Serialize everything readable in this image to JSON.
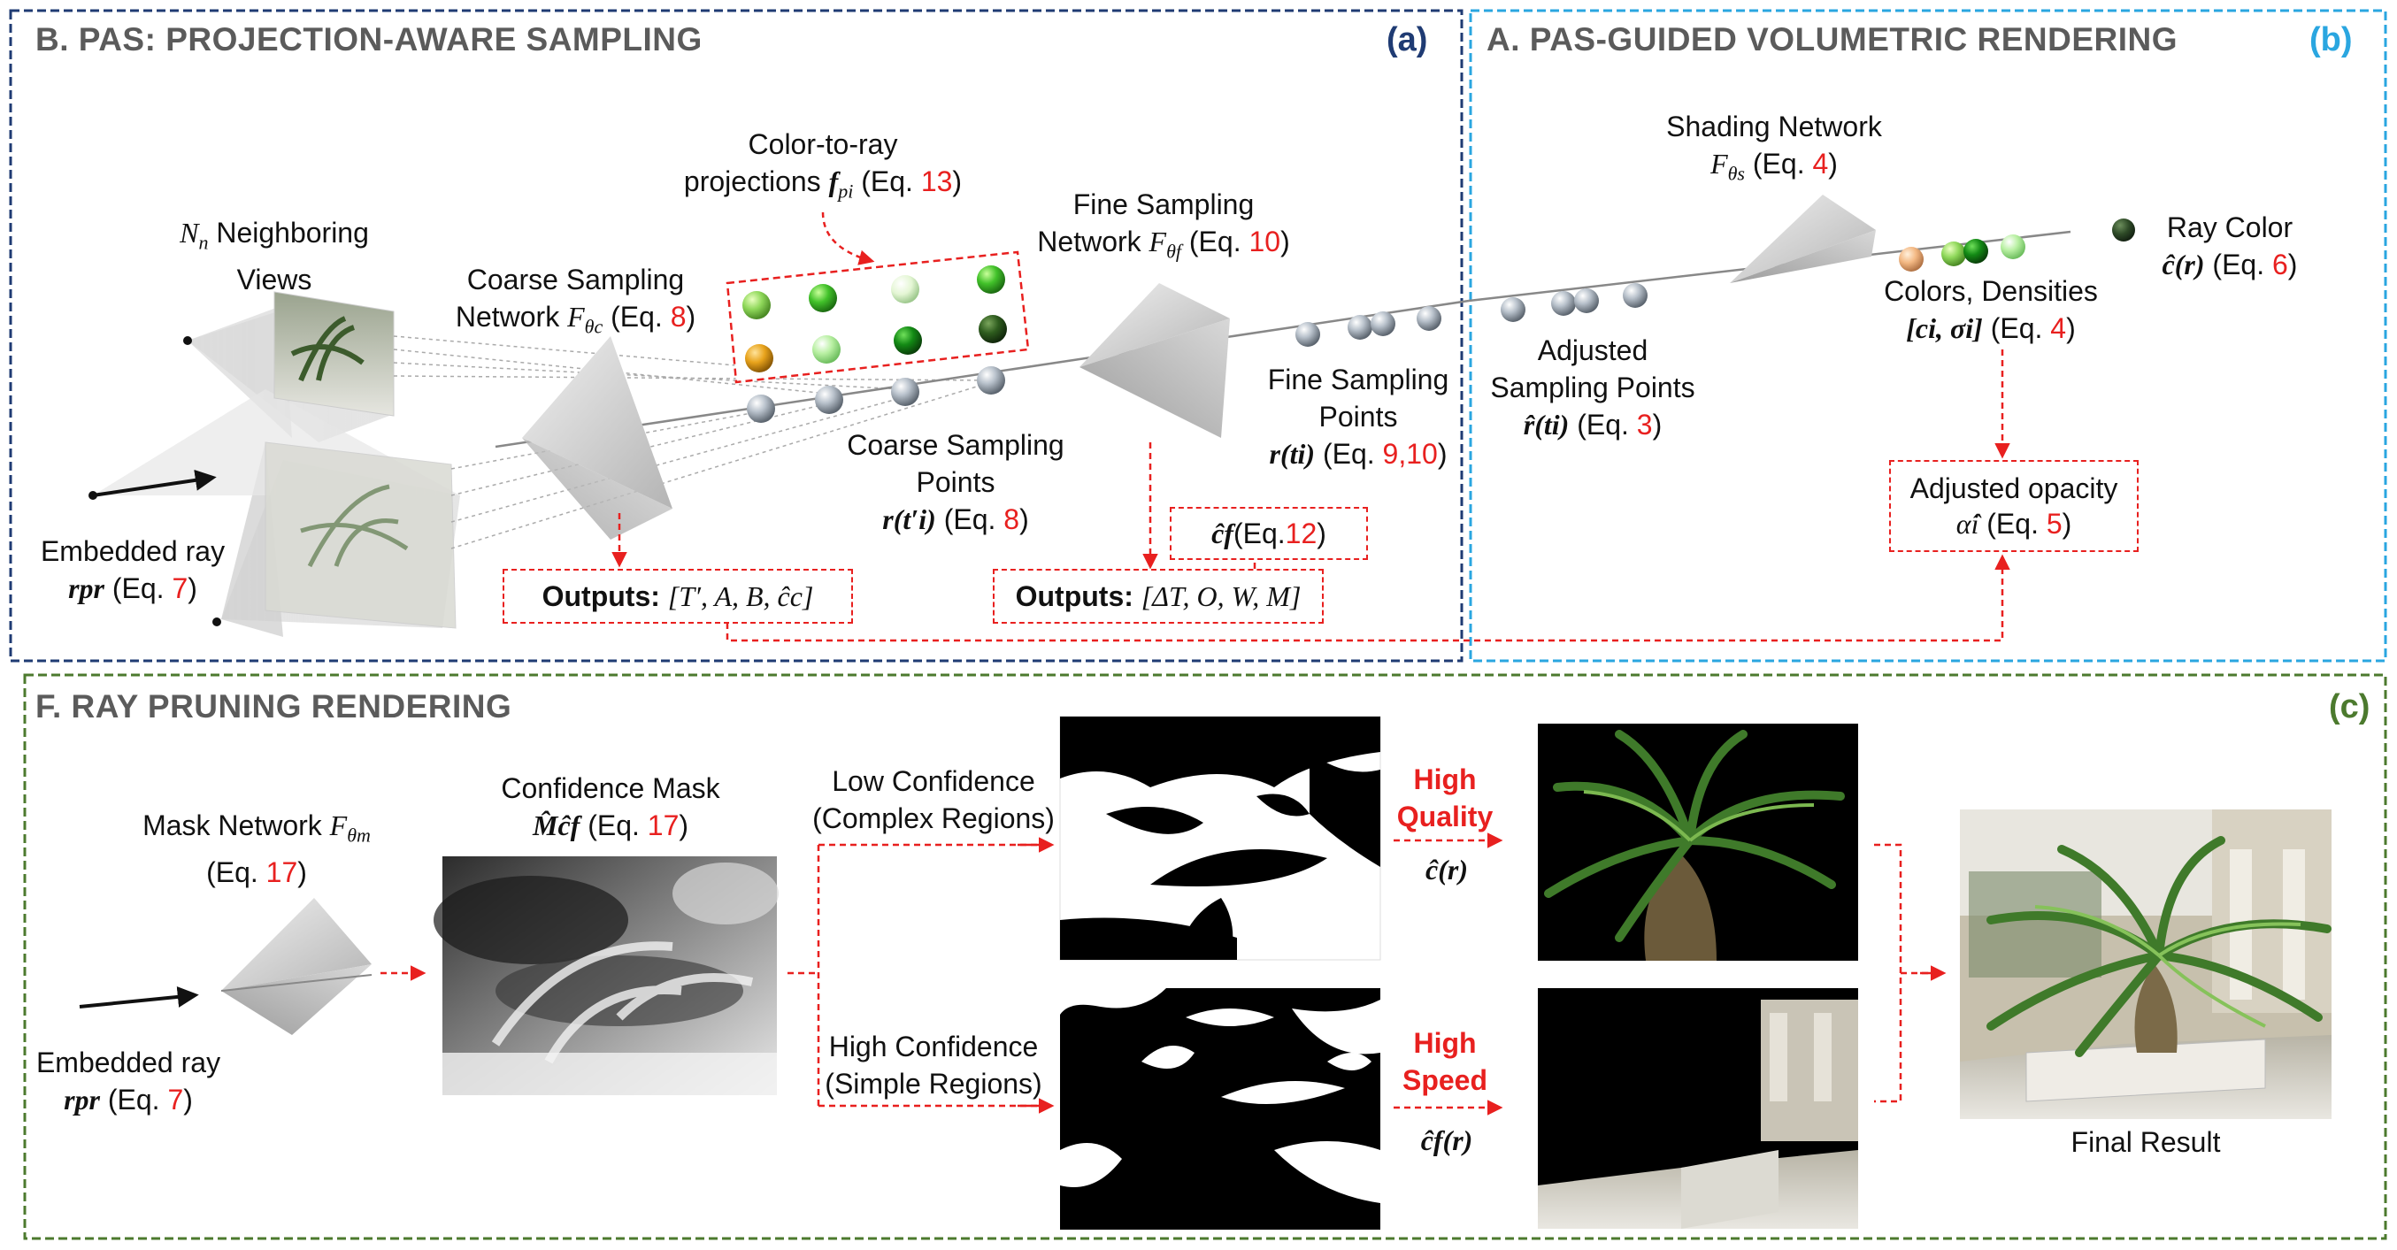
{
  "panels": {
    "a": {
      "title": "B. PAS: PROJECTION-AWARE SAMPLING",
      "tag": "(a)",
      "color": "#1f3b73"
    },
    "b": {
      "title": "A. PAS-GUIDED VOLUMETRIC RENDERING",
      "tag": "(b)",
      "color": "#2aa6e0"
    },
    "c": {
      "title": "F. RAY PRUNING RENDERING",
      "tag": "(c)",
      "color": "#4c7a2e"
    }
  },
  "a": {
    "neighboring_views": {
      "prefix": "N",
      "sub": "n",
      "text": " Neighboring",
      "line2": "Views"
    },
    "coarse_network": {
      "line1": "Coarse Sampling",
      "line2_pre": "Network ",
      "F": "F",
      "sub": "θc",
      "eq": " (Eq. ",
      "eq_num": "8",
      "end": ")"
    },
    "color_to_ray": {
      "line1": "Color-to-ray",
      "line2_pre": "projections ",
      "f": "f",
      "sub": "pi",
      "eq": " (Eq. ",
      "eq_num": "13",
      "end": ")"
    },
    "fine_network": {
      "line1": "Fine Sampling",
      "line2_pre": "Network ",
      "F": "F",
      "sub": "θf",
      "eq": " (Eq. ",
      "eq_num": "10",
      "end": ")"
    },
    "coarse_points": {
      "line1": "Coarse Sampling",
      "line2": "Points",
      "math": "r(t′i)",
      "eq": " (Eq. ",
      "eq_num": "8",
      "end": ")"
    },
    "fine_points": {
      "line1": "Fine Sampling",
      "line2": "Points",
      "math": "r(ti)",
      "eq": " (Eq. ",
      "eq_num": "9,10",
      "end": ")"
    },
    "embedded_ray": {
      "line1": "Embedded ray",
      "math": "rpr",
      "eq": " (Eq. ",
      "eq_num": "7",
      "end": ")"
    },
    "outputs_coarse": {
      "label": "Outputs:",
      "math": "[T′, A, B, ĉc]"
    },
    "outputs_fine": {
      "label": "Outputs:",
      "math": "[ΔT, O, W, M]"
    },
    "cf_box": {
      "math": "ĉf",
      "eq": " (Eq. ",
      "eq_num": "12",
      "end": ")"
    }
  },
  "b": {
    "shading": {
      "line1": "Shading Network",
      "F": "F",
      "sub": "θs",
      "eq": " (Eq. ",
      "eq_num": "4",
      "end": ")"
    },
    "adjusted_points": {
      "line1": "Adjusted",
      "line2": "Sampling Points",
      "math": "r̂(ti)",
      "eq": " (Eq. ",
      "eq_num": "3",
      "end": ")"
    },
    "colors": {
      "line1": "Colors, Densities",
      "math": "[ci, σi]",
      "eq": " (Eq. ",
      "eq_num": "4",
      "end": ")"
    },
    "ray_color": {
      "line1": "Ray Color",
      "math": "ĉ(r)",
      "eq": " (Eq. ",
      "eq_num": "6",
      "end": ")"
    },
    "opacity": {
      "line1": "Adjusted opacity",
      "math": "α̂i",
      "eq": " (Eq. ",
      "eq_num": "5",
      "end": ")"
    }
  },
  "c": {
    "mask_network": {
      "line1_pre": "Mask Network ",
      "F": "F",
      "sub": "θm",
      "eq": "(Eq. ",
      "eq_num": "17",
      "end": ")"
    },
    "conf_mask": {
      "line1": "Confidence Mask",
      "math": "M̂ĉf",
      "eq": " (Eq. ",
      "eq_num": "17",
      "end": ")"
    },
    "embedded_ray": {
      "line1": "Embedded ray",
      "math": "rpr",
      "eq": " (Eq. ",
      "eq_num": "7",
      "end": ")"
    },
    "low": {
      "line1": "Low Confidence",
      "line2": "(Complex Regions)"
    },
    "high": {
      "line1": "High Confidence",
      "line2": "(Simple Regions)"
    },
    "hq": {
      "line1": "High",
      "line2": "Quality",
      "math": "ĉ(r)"
    },
    "hs": {
      "line1": "High",
      "line2": "Speed",
      "math": "ĉf(r)"
    },
    "final": "Final Result"
  }
}
